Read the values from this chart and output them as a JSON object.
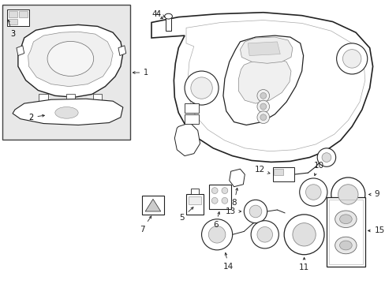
{
  "bg_color": "#ffffff",
  "line_color": "#222222",
  "label_color": "#000000",
  "inset_bg": "#e0e0e0",
  "inset_border": "#333333",
  "figsize": [
    4.89,
    3.6
  ],
  "dpi": 100
}
